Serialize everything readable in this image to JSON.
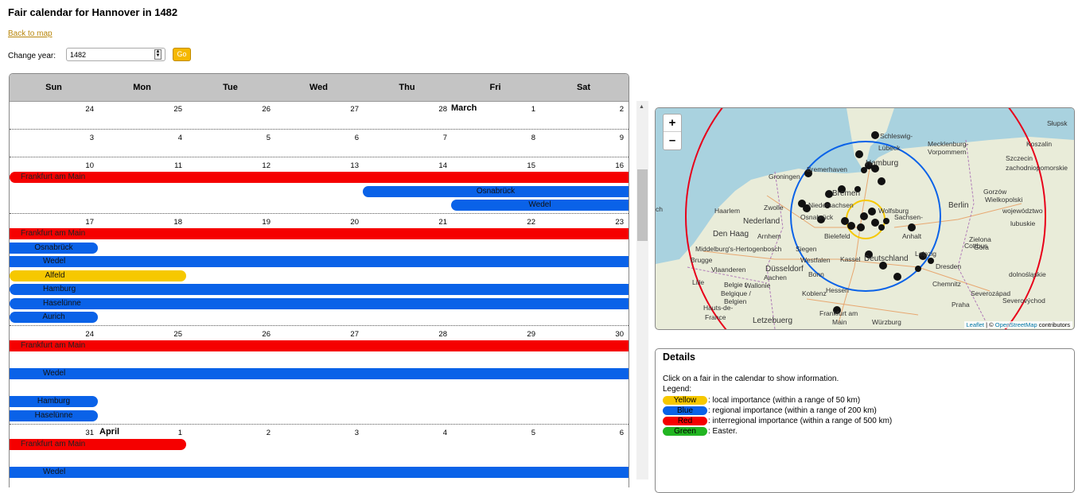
{
  "page": {
    "title": "Fair calendar for Hannover in 1482",
    "back_link": "Back to map",
    "change_year_label": "Change year:",
    "year_value": "1482",
    "go_label": "Go"
  },
  "calendar": {
    "day_names": [
      "Sun",
      "Mon",
      "Tue",
      "Wed",
      "Thu",
      "Fri",
      "Sat"
    ],
    "weeks": [
      {
        "days": [
          "24",
          "25",
          "26",
          "27",
          "28",
          "1",
          "2"
        ],
        "month_label": "March",
        "month_col": 4,
        "fairs": []
      },
      {
        "days": [
          "3",
          "4",
          "5",
          "6",
          "7",
          "8",
          "9"
        ],
        "fairs": []
      },
      {
        "days": [
          "10",
          "11",
          "12",
          "13",
          "14",
          "15",
          "16"
        ],
        "fairs": [
          {
            "name": "Frankfurt am Main",
            "color": "red",
            "start_col": 0,
            "end_col": 7,
            "row": 0,
            "open_left": false,
            "open_right": true
          },
          {
            "name": "Osnabrück",
            "color": "blue",
            "start_col": 4,
            "end_col": 7,
            "row": 1,
            "open_left": false,
            "open_right": true
          },
          {
            "name": "Wedel",
            "color": "blue",
            "start_col": 5,
            "end_col": 7,
            "row": 2,
            "open_left": false,
            "open_right": true
          }
        ]
      },
      {
        "days": [
          "17",
          "18",
          "19",
          "20",
          "21",
          "22",
          "23"
        ],
        "fairs": [
          {
            "name": "Frankfurt am Main",
            "color": "red",
            "start_col": 0,
            "end_col": 7,
            "row": 0,
            "open_left": true,
            "open_right": true
          },
          {
            "name": "Osnabrück",
            "color": "blue",
            "start_col": 0,
            "end_col": 1,
            "row": 1,
            "open_left": true,
            "open_right": false
          },
          {
            "name": "Wedel",
            "color": "blue",
            "start_col": 0,
            "end_col": 7,
            "row": 2,
            "open_left": true,
            "open_right": true
          },
          {
            "name": "Alfeld",
            "color": "yellow",
            "start_col": 0,
            "end_col": 2,
            "row": 3,
            "open_left": false,
            "open_right": false
          },
          {
            "name": "Hamburg",
            "color": "blue",
            "start_col": 0,
            "end_col": 7,
            "row": 4,
            "open_left": false,
            "open_right": true
          },
          {
            "name": "Haselünne",
            "color": "blue",
            "start_col": 0,
            "end_col": 7,
            "row": 5,
            "open_left": false,
            "open_right": true
          },
          {
            "name": "Aurich",
            "color": "blue",
            "start_col": 0,
            "end_col": 1,
            "row": 6,
            "open_left": false,
            "open_right": false
          }
        ]
      },
      {
        "days": [
          "24",
          "25",
          "26",
          "27",
          "28",
          "29",
          "30"
        ],
        "fairs": [
          {
            "name": "Frankfurt am Main",
            "color": "red",
            "start_col": 0,
            "end_col": 7,
            "row": 0,
            "open_left": true,
            "open_right": true
          },
          {
            "name": "Wedel",
            "color": "blue",
            "start_col": 0,
            "end_col": 7,
            "row": 2,
            "open_left": true,
            "open_right": true
          },
          {
            "name": "Hamburg",
            "color": "blue",
            "start_col": 0,
            "end_col": 1,
            "row": 4,
            "open_left": true,
            "open_right": false
          },
          {
            "name": "Haselünne",
            "color": "blue",
            "start_col": 0,
            "end_col": 1,
            "row": 5,
            "open_left": true,
            "open_right": false
          }
        ]
      },
      {
        "days": [
          "31",
          "1",
          "2",
          "3",
          "4",
          "5",
          "6"
        ],
        "month_label": "April",
        "month_col": 1,
        "fairs": [
          {
            "name": "Frankfurt am Main",
            "color": "red",
            "start_col": 0,
            "end_col": 2,
            "row": 0,
            "open_left": true,
            "open_right": false
          },
          {
            "name": "Wedel",
            "color": "blue",
            "start_col": 0,
            "end_col": 7,
            "row": 2,
            "open_left": true,
            "open_right": true
          }
        ]
      }
    ]
  },
  "map": {
    "zoom_in": "+",
    "zoom_out": "–",
    "attribution_leaflet": "Leaflet",
    "attribution_sep": " | © ",
    "attribution_osm": "OpenStreetMap",
    "attribution_suffix": " contributors",
    "place_labels": [
      {
        "text": "Hamburg"
      },
      {
        "text": "Bremen"
      },
      {
        "text": "Groningen"
      },
      {
        "text": "Bremerhaven"
      },
      {
        "text": "Lübeck"
      },
      {
        "text": "Berlin"
      },
      {
        "text": "Den Haag"
      },
      {
        "text": "Nederland"
      },
      {
        "text": "Zwolle"
      },
      {
        "text": "Haarlem"
      },
      {
        "text": "Arnhem"
      },
      {
        "text": "Osnabrück"
      },
      {
        "text": "Bielefeld"
      },
      {
        "text": "Kassel"
      },
      {
        "text": "Deutschland"
      },
      {
        "text": "Düsseldorf"
      },
      {
        "text": "Aachen"
      },
      {
        "text": "Bonn"
      },
      {
        "text": "Koblenz"
      },
      {
        "text": "Frankfurt am"
      },
      {
        "text": "Main"
      },
      {
        "text": "Würzburg"
      },
      {
        "text": "Letzebuerg"
      },
      {
        "text": "Brugge"
      },
      {
        "text": "Lille"
      },
      {
        "text": "Belgie /"
      },
      {
        "text": "Belgique /"
      },
      {
        "text": "Belgien"
      },
      {
        "text": "Siegen"
      },
      {
        "text": "Wolfsburg"
      },
      {
        "text": "Leipzig"
      },
      {
        "text": "Dresden"
      },
      {
        "text": "Chemnitz"
      },
      {
        "text": "Praha"
      },
      {
        "text": "Cottbus"
      },
      {
        "text": "Zielona"
      },
      {
        "text": "Góra"
      },
      {
        "text": "Gorzów"
      },
      {
        "text": "Wielkopolski"
      },
      {
        "text": "Szczecin"
      },
      {
        "text": "Koszalin"
      },
      {
        "text": "Słupsk"
      },
      {
        "text": "Mecklenburg-"
      },
      {
        "text": "Vorpommern"
      },
      {
        "text": "Schleswig-"
      },
      {
        "text": "Middelburg"
      },
      {
        "text": "'s-Hertogenbosch"
      },
      {
        "text": "Sachsen-"
      },
      {
        "text": "Anhalt"
      },
      {
        "text": "Hauts-de-"
      },
      {
        "text": "France"
      },
      {
        "text": "Vlaanderen"
      },
      {
        "text": "Wallonie"
      },
      {
        "text": "Westfalen"
      },
      {
        "text": "Hessen"
      },
      {
        "text": "Niedersachsen"
      },
      {
        "text": "województwo"
      },
      {
        "text": "zachodniopomorskie"
      },
      {
        "text": "lubuskie"
      },
      {
        "text": "dolnośląskie"
      },
      {
        "text": "Severovýchod"
      },
      {
        "text": "Severozápad"
      },
      {
        "text": "ch"
      }
    ]
  },
  "details": {
    "title": "Details",
    "intro": "Click on a fair in the calendar to show information.",
    "legend_label": "Legend:",
    "legend": [
      {
        "pill": "Yellow",
        "text": ": local importance (within a range of 50 km)",
        "color": "#f6c800"
      },
      {
        "pill": "Blue",
        "text": ": regional importance (within a range of 200 km)",
        "color": "#0a62e8"
      },
      {
        "pill": "Red",
        "text": ": interregional importance (within a range of 500 km)",
        "color": "#f50000"
      },
      {
        "pill": "Green",
        "text": ": Easter.",
        "color": "#22b522"
      }
    ]
  }
}
